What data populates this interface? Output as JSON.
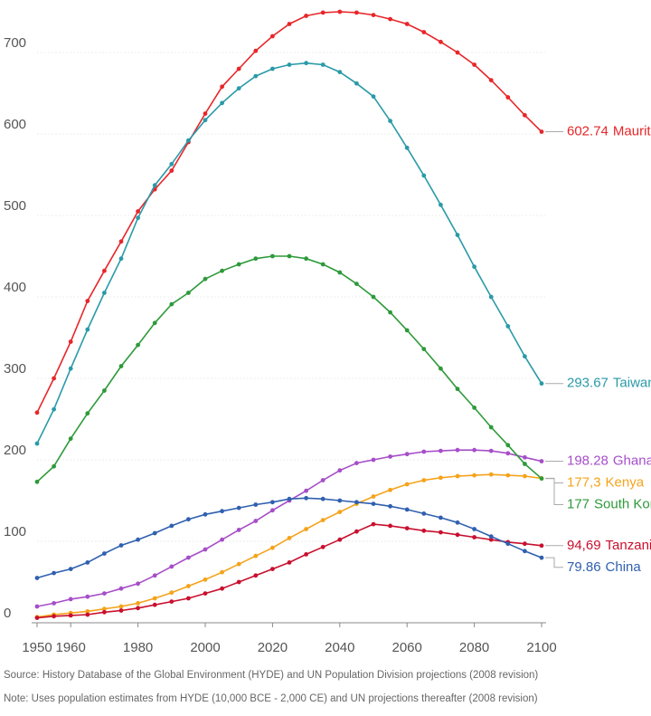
{
  "chart_data": {
    "type": "line",
    "x": [
      1950,
      1955,
      1960,
      1965,
      1970,
      1975,
      1980,
      1985,
      1990,
      1995,
      2000,
      2005,
      2010,
      2015,
      2020,
      2025,
      2030,
      2035,
      2040,
      2045,
      2050,
      2055,
      2060,
      2065,
      2070,
      2075,
      2080,
      2085,
      2090,
      2095,
      2100
    ],
    "series": [
      {
        "name": "Mauritius",
        "color": "#e8262a",
        "values": [
          258,
          300,
          345,
          395,
          432,
          468,
          505,
          532,
          555,
          590,
          625,
          658,
          680,
          702,
          720,
          735,
          745,
          749,
          750,
          749,
          746,
          741,
          735,
          725,
          713,
          700,
          685,
          666,
          645,
          623,
          602.74
        ],
        "value_labels": [
          null,
          null,
          null,
          null,
          null,
          null,
          null,
          null,
          null,
          null,
          null,
          null,
          null,
          null,
          null,
          null,
          null,
          null,
          null,
          null,
          null,
          null,
          null,
          null,
          null,
          null,
          null,
          null,
          null,
          null,
          "602.74"
        ]
      },
      {
        "name": "Taiwan",
        "color": "#2a9aa8",
        "values": [
          220,
          262,
          312,
          360,
          405,
          447,
          497,
          537,
          563,
          592,
          617,
          638,
          656,
          671,
          680,
          685,
          687,
          685,
          676,
          662,
          646,
          616,
          583,
          549,
          513,
          476,
          437,
          400,
          364,
          327,
          293.67
        ],
        "value_labels": [
          null,
          null,
          null,
          null,
          null,
          null,
          null,
          null,
          null,
          null,
          null,
          null,
          null,
          null,
          null,
          null,
          null,
          null,
          null,
          null,
          null,
          null,
          null,
          null,
          null,
          null,
          null,
          null,
          null,
          null,
          "293.67"
        ]
      },
      {
        "name": "Ghana",
        "color": "#a64ec9",
        "values": [
          20,
          24,
          29,
          32,
          36,
          42,
          48,
          58,
          69,
          80,
          90,
          102,
          114,
          125,
          138,
          150,
          162,
          175,
          187,
          196,
          200,
          204,
          207,
          210,
          211,
          212,
          212,
          211,
          208,
          203,
          198.28
        ],
        "value_labels": [
          null,
          null,
          null,
          null,
          null,
          null,
          null,
          null,
          null,
          null,
          null,
          null,
          null,
          null,
          null,
          null,
          null,
          null,
          null,
          null,
          null,
          null,
          null,
          null,
          null,
          null,
          null,
          null,
          null,
          null,
          "198.28"
        ]
      },
      {
        "name": "Kenya",
        "color": "#f5a31a",
        "values": [
          7,
          10,
          12,
          14,
          17,
          20,
          24,
          30,
          37,
          45,
          53,
          62,
          72,
          82,
          92,
          104,
          115,
          126,
          136,
          146,
          155,
          163,
          170,
          175,
          178,
          180,
          181,
          182,
          181,
          180,
          177.3
        ],
        "value_labels": [
          null,
          null,
          null,
          null,
          null,
          null,
          null,
          null,
          null,
          null,
          null,
          null,
          null,
          null,
          null,
          null,
          null,
          null,
          null,
          null,
          null,
          null,
          null,
          null,
          null,
          null,
          null,
          null,
          null,
          null,
          "177,3"
        ]
      },
      {
        "name": "South Korea",
        "color": "#2e9a3a",
        "values": [
          173,
          192,
          226,
          257,
          285,
          315,
          341,
          368,
          391,
          405,
          422,
          432,
          440,
          447,
          450,
          450,
          447,
          440,
          430,
          416,
          400,
          381,
          359,
          336,
          312,
          287,
          264,
          240,
          218,
          195,
          177
        ],
        "value_labels": [
          null,
          null,
          null,
          null,
          null,
          null,
          null,
          null,
          null,
          null,
          null,
          null,
          null,
          null,
          null,
          null,
          null,
          null,
          null,
          null,
          null,
          null,
          null,
          null,
          null,
          null,
          null,
          null,
          null,
          null,
          "177"
        ]
      },
      {
        "name": "Tanzania",
        "color": "#c8102e",
        "values": [
          6,
          8,
          9,
          10,
          13,
          15,
          18,
          22,
          26,
          30,
          36,
          42,
          50,
          58,
          66,
          74,
          84,
          93,
          102,
          112,
          121,
          119,
          116,
          113,
          111,
          108,
          105,
          102,
          99,
          97,
          94.69
        ],
        "value_labels": [
          null,
          null,
          null,
          null,
          null,
          null,
          null,
          null,
          null,
          null,
          null,
          null,
          null,
          null,
          null,
          null,
          null,
          null,
          null,
          null,
          null,
          null,
          null,
          null,
          null,
          null,
          null,
          null,
          null,
          null,
          "94,69"
        ]
      },
      {
        "name": "China",
        "color": "#3060b0",
        "values": [
          55,
          61,
          66,
          74,
          85,
          95,
          102,
          110,
          119,
          127,
          133,
          137,
          141,
          145,
          148,
          152,
          153,
          152,
          150,
          148,
          146,
          143,
          139,
          134,
          129,
          123,
          115,
          106,
          97,
          88,
          79.86
        ],
        "value_labels": [
          null,
          null,
          null,
          null,
          null,
          null,
          null,
          null,
          null,
          null,
          null,
          null,
          null,
          null,
          null,
          null,
          null,
          null,
          null,
          null,
          null,
          null,
          null,
          null,
          null,
          null,
          null,
          null,
          null,
          null,
          "79.86"
        ]
      }
    ],
    "xlim": [
      1950,
      2100
    ],
    "xticks": [
      1950,
      1960,
      1980,
      2000,
      2020,
      2040,
      2060,
      2080,
      2100
    ],
    "ylim": [
      0,
      760
    ],
    "yticks": [
      0,
      100,
      200,
      300,
      400,
      500,
      600,
      700
    ],
    "grid": true,
    "source": "Source: History Database of the Global Environment (HYDE) and UN Population Division projections (2008 revision)",
    "note": "Note: Uses population estimates from HYDE (10,000 BCE - 2,000 CE) and UN projections thereafter (2008 revision)"
  }
}
